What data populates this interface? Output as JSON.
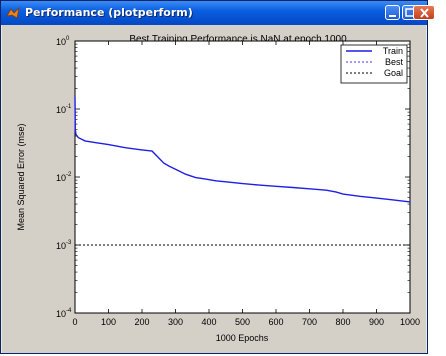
{
  "window": {
    "title": "Performance (plotperform)"
  },
  "colors": {
    "train": "#1f1fe8",
    "best": "#4040e0",
    "goal": "#000000",
    "plot_bg": "#ffffff",
    "figure_bg": "#d4d0c8"
  },
  "chart_data": {
    "type": "line",
    "title": "Best Training Performance is NaN at epoch 1000",
    "xlabel": "1000 Epochs",
    "ylabel": "Mean Squared Error  (mse)",
    "xlim": [
      0,
      1000
    ],
    "ylim": [
      0.0001,
      1
    ],
    "yscale": "log",
    "xticks": [
      "0",
      "100",
      "200",
      "300",
      "400",
      "500",
      "600",
      "700",
      "800",
      "900",
      "1000"
    ],
    "yticks": [
      {
        "base": "10",
        "exp": "0",
        "value": 1
      },
      {
        "base": "10",
        "exp": "-1",
        "value": 0.1
      },
      {
        "base": "10",
        "exp": "-2",
        "value": 0.01
      },
      {
        "base": "10",
        "exp": "-3",
        "value": 0.001
      },
      {
        "base": "10",
        "exp": "-4",
        "value": 0.0001
      }
    ],
    "legend": {
      "placement": "top-right",
      "entries": [
        "Train",
        "Best",
        "Goal"
      ]
    },
    "series": [
      {
        "name": "Train",
        "style": "solid",
        "x": [
          0,
          1,
          3,
          10,
          30,
          60,
          100,
          150,
          200,
          230,
          250,
          265,
          280,
          300,
          330,
          360,
          390,
          420,
          450,
          500,
          550,
          600,
          650,
          700,
          750,
          780,
          800,
          850,
          900,
          950,
          1000
        ],
        "y": [
          0.15,
          0.05,
          0.042,
          0.038,
          0.034,
          0.032,
          0.03,
          0.027,
          0.025,
          0.024,
          0.019,
          0.016,
          0.0145,
          0.013,
          0.011,
          0.0098,
          0.0093,
          0.0088,
          0.0085,
          0.008,
          0.0076,
          0.0073,
          0.007,
          0.0067,
          0.0064,
          0.006,
          0.0056,
          0.0052,
          0.0049,
          0.0046,
          0.0043
        ]
      },
      {
        "name": "Goal",
        "style": "dotted",
        "x": [
          0,
          1000
        ],
        "y": [
          0.001,
          0.001
        ]
      }
    ]
  }
}
